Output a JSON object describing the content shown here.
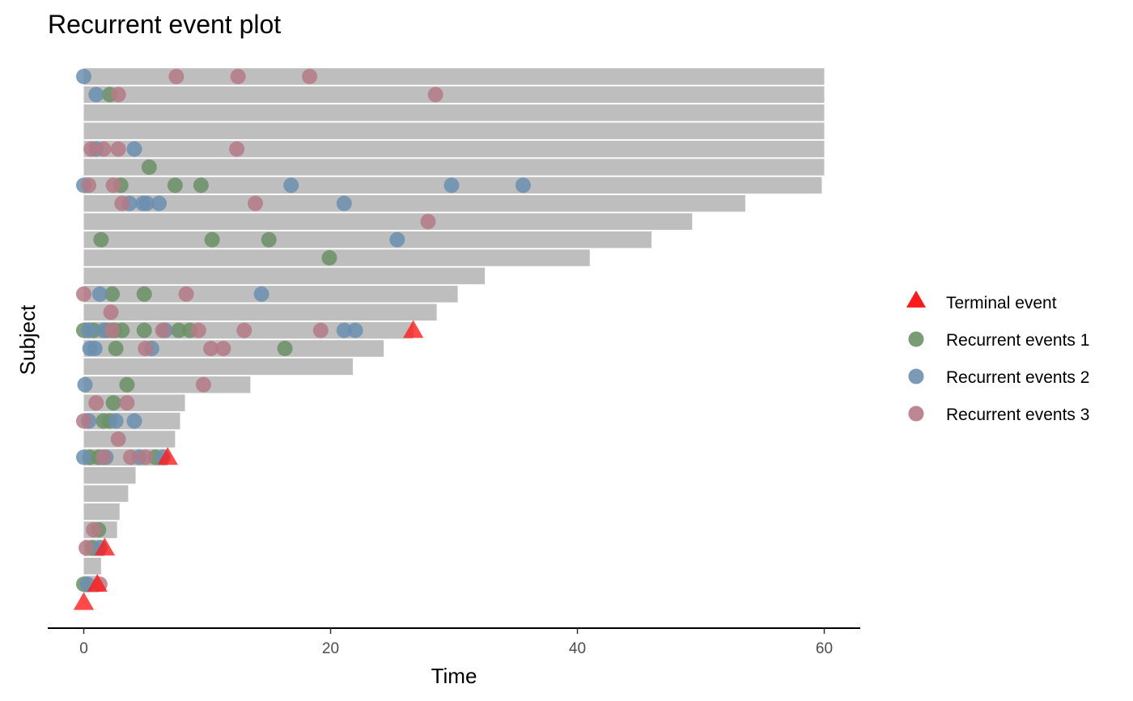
{
  "chart_data": {
    "type": "scatter",
    "title": "Recurrent event plot",
    "xlabel": "Time",
    "ylabel": "Subject",
    "xlim": [
      -2.9,
      63
    ],
    "x_ticks": [
      0,
      20,
      40,
      60
    ],
    "x_tick_labels": [
      "0",
      "20",
      "40",
      "60"
    ],
    "grid": false,
    "legend_position": "right",
    "colors": {
      "bar": "#bebebe",
      "terminal": "#ff1a1a",
      "recurrent_1": "#6b9166",
      "recurrent_2": "#6b8fb0",
      "recurrent_3": "#b57a86",
      "axis": "#000000"
    },
    "legend": [
      {
        "key": "terminal",
        "label": "Terminal event",
        "shape": "triangle"
      },
      {
        "key": "recurrent_1",
        "label": "Recurrent events 1",
        "shape": "circle"
      },
      {
        "key": "recurrent_2",
        "label": "Recurrent events 2",
        "shape": "circle"
      },
      {
        "key": "recurrent_3",
        "label": "Recurrent events 3",
        "shape": "circle"
      }
    ],
    "subjects": [
      {
        "end": 60,
        "r1": [],
        "r2": [
          0
        ],
        "r3": [
          7.5,
          12.5,
          18.3
        ],
        "terminal": []
      },
      {
        "end": 60,
        "r1": [
          2.1
        ],
        "r2": [
          1
        ],
        "r3": [
          2.8,
          28.5
        ],
        "terminal": []
      },
      {
        "end": 60,
        "r1": [],
        "r2": [],
        "r3": [],
        "terminal": []
      },
      {
        "end": 60,
        "r1": [],
        "r2": [],
        "r3": [],
        "terminal": []
      },
      {
        "end": 60,
        "r1": [],
        "r2": [
          1,
          4.1
        ],
        "r3": [
          0.6,
          1.6,
          2.8,
          12.4
        ],
        "terminal": []
      },
      {
        "end": 60,
        "r1": [
          5.3
        ],
        "r2": [],
        "r3": [],
        "terminal": []
      },
      {
        "end": 59.8,
        "r1": [
          3,
          7.4,
          9.5
        ],
        "r2": [
          0,
          16.8,
          29.8,
          35.6
        ],
        "r3": [
          0.4,
          2.4
        ],
        "terminal": []
      },
      {
        "end": 53.6,
        "r1": [],
        "r2": [
          3.7,
          4.8,
          5.1,
          6.1,
          21.1
        ],
        "r3": [
          3.1,
          13.9
        ],
        "terminal": []
      },
      {
        "end": 49.3,
        "r1": [],
        "r2": [],
        "r3": [
          27.9
        ],
        "terminal": []
      },
      {
        "end": 46,
        "r1": [
          1.4,
          10.4,
          15
        ],
        "r2": [
          25.4
        ],
        "r3": [],
        "terminal": []
      },
      {
        "end": 41,
        "r1": [
          19.9
        ],
        "r2": [],
        "r3": [],
        "terminal": []
      },
      {
        "end": 32.5,
        "r1": [],
        "r2": [],
        "r3": [],
        "terminal": []
      },
      {
        "end": 30.3,
        "r1": [
          2.3,
          4.9
        ],
        "r2": [
          1.3,
          14.4
        ],
        "r3": [
          0,
          8.3
        ],
        "terminal": []
      },
      {
        "end": 28.6,
        "r1": [],
        "r2": [],
        "r3": [
          2.2
        ],
        "terminal": []
      },
      {
        "end": 26.7,
        "r1": [
          0,
          0.8,
          1.9,
          2.5,
          3.1,
          4.9,
          7.7,
          8.6
        ],
        "r2": [
          0.4,
          1.6,
          6.6,
          21.1,
          22
        ],
        "r3": [
          2.3,
          6.4,
          9.3,
          13,
          19.2
        ],
        "terminal": [
          26.7
        ]
      },
      {
        "end": 24.3,
        "r1": [
          2.6,
          16.3
        ],
        "r2": [
          0.5,
          0.9,
          5.5
        ],
        "r3": [
          5,
          10.3,
          11.3
        ],
        "terminal": []
      },
      {
        "end": 21.8,
        "r1": [],
        "r2": [],
        "r3": [],
        "terminal": []
      },
      {
        "end": 13.5,
        "r1": [
          3.5
        ],
        "r2": [
          0.1
        ],
        "r3": [
          9.7
        ],
        "terminal": []
      },
      {
        "end": 8.2,
        "r1": [
          2.4
        ],
        "r2": [],
        "r3": [
          1,
          3.5
        ],
        "terminal": []
      },
      {
        "end": 7.8,
        "r1": [
          1.6,
          2.1
        ],
        "r2": [
          0.4,
          2.6,
          4.1
        ],
        "r3": [
          0
        ],
        "terminal": []
      },
      {
        "end": 7.4,
        "r1": [],
        "r2": [],
        "r3": [
          2.8
        ],
        "terminal": []
      },
      {
        "end": 6.8,
        "r1": [
          0.5,
          1.2,
          5.8
        ],
        "r2": [
          0,
          1.8,
          4.5,
          6.4
        ],
        "r3": [
          1.6,
          3.8,
          5
        ],
        "terminal": [
          6.8
        ]
      },
      {
        "end": 4.2,
        "r1": [],
        "r2": [],
        "r3": [],
        "terminal": []
      },
      {
        "end": 3.6,
        "r1": [],
        "r2": [],
        "r3": [],
        "terminal": []
      },
      {
        "end": 2.9,
        "r1": [],
        "r2": [],
        "r3": [],
        "terminal": []
      },
      {
        "end": 2.7,
        "r1": [
          1.2
        ],
        "r2": [],
        "r3": [
          0.8
        ],
        "terminal": []
      },
      {
        "end": 1.7,
        "r1": [
          0.7
        ],
        "r2": [
          1.3
        ],
        "r3": [
          0.2
        ],
        "terminal": [
          1.7
        ]
      },
      {
        "end": 1.4,
        "r1": [],
        "r2": [],
        "r3": [],
        "terminal": []
      },
      {
        "end": 1.2,
        "r1": [
          0
        ],
        "r2": [
          0.3
        ],
        "r3": [
          1.3
        ],
        "terminal": [
          1.1
        ]
      },
      {
        "end": 0,
        "r1": [],
        "r2": [],
        "r3": [],
        "terminal": [
          0
        ]
      }
    ]
  }
}
